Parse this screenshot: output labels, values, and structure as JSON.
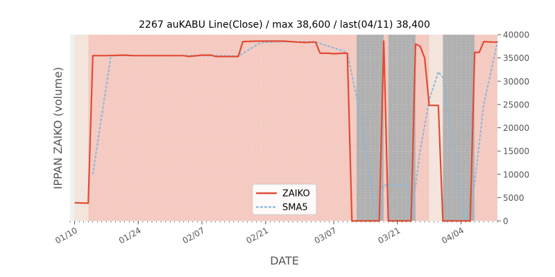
{
  "chart_data": {
    "type": "line",
    "title": "2267 auKABU Line(Close) / max 38,600 / last(04/11) 38,400",
    "xlabel": "DATE",
    "ylabel": "IPPAN ZAIKO (volume)",
    "ylim": [
      0,
      40000
    ],
    "y_ticks": [
      0,
      5000,
      10000,
      15000,
      20000,
      25000,
      30000,
      35000,
      40000
    ],
    "y_tick_labels": [
      "0",
      "5000",
      "10000",
      "15000",
      "20000",
      "25000",
      "30000",
      "35000",
      "40000"
    ],
    "y_axis_side": "right",
    "x_range": [
      "2024-01-09",
      "2024-04-12"
    ],
    "x_ticks": [
      "2024-01-10",
      "2024-01-24",
      "2024-02-07",
      "2024-02-21",
      "2024-03-07",
      "2024-03-21",
      "2024-04-04"
    ],
    "x_tick_labels": [
      "01/10",
      "01/24",
      "02/07",
      "02/21",
      "03/07",
      "03/21",
      "04/04"
    ],
    "grid": true,
    "legend_position": "bottom-center",
    "colors": {
      "zaiko": "#e24a33",
      "sma5": "#8eb9d8",
      "band_light": "#f3e4dc",
      "band_red": "#f4cac1",
      "band_gray": "#b1b1b1"
    },
    "bands": [
      {
        "start": "2024-01-10",
        "end": "2024-01-13",
        "kind": "light"
      },
      {
        "start": "2024-01-13",
        "end": "2024-03-12",
        "kind": "red"
      },
      {
        "start": "2024-03-12",
        "end": "2024-03-18",
        "kind": "gray"
      },
      {
        "start": "2024-03-18",
        "end": "2024-03-19",
        "kind": "red"
      },
      {
        "start": "2024-03-19",
        "end": "2024-03-25",
        "kind": "gray"
      },
      {
        "start": "2024-03-25",
        "end": "2024-03-28",
        "kind": "red"
      },
      {
        "start": "2024-03-28",
        "end": "2024-03-31",
        "kind": "light"
      },
      {
        "start": "2024-03-31",
        "end": "2024-04-07",
        "kind": "gray"
      },
      {
        "start": "2024-04-07",
        "end": "2024-04-12",
        "kind": "red"
      }
    ],
    "series": [
      {
        "name": "ZAIKO",
        "style": "solid",
        "points": [
          [
            "2024-01-10",
            3900
          ],
          [
            "2024-01-13",
            3800
          ],
          [
            "2024-01-14",
            35500
          ],
          [
            "2024-01-17",
            35500
          ],
          [
            "2024-01-21",
            35600
          ],
          [
            "2024-01-23",
            35500
          ],
          [
            "2024-01-28",
            35500
          ],
          [
            "2024-02-03",
            35500
          ],
          [
            "2024-02-04",
            35300
          ],
          [
            "2024-02-07",
            35600
          ],
          [
            "2024-02-09",
            35600
          ],
          [
            "2024-02-10",
            35300
          ],
          [
            "2024-02-15",
            35300
          ],
          [
            "2024-02-16",
            38500
          ],
          [
            "2024-02-19",
            38600
          ],
          [
            "2024-02-25",
            38600
          ],
          [
            "2024-02-28",
            38400
          ],
          [
            "2024-03-01",
            38300
          ],
          [
            "2024-03-02",
            38400
          ],
          [
            "2024-03-03",
            38400
          ],
          [
            "2024-03-04",
            36000
          ],
          [
            "2024-03-06",
            36000
          ],
          [
            "2024-03-07",
            35900
          ],
          [
            "2024-03-09",
            36000
          ],
          [
            "2024-03-10",
            36000
          ],
          [
            "2024-03-11",
            0
          ],
          [
            "2024-03-17",
            0
          ],
          [
            "2024-03-18",
            38600
          ],
          [
            "2024-03-19",
            0
          ],
          [
            "2024-03-24",
            0
          ],
          [
            "2024-03-25",
            38000
          ],
          [
            "2024-03-26",
            37500
          ],
          [
            "2024-03-27",
            35000
          ],
          [
            "2024-03-28",
            24800
          ],
          [
            "2024-03-30",
            24800
          ],
          [
            "2024-03-31",
            0
          ],
          [
            "2024-04-06",
            0
          ],
          [
            "2024-04-07",
            36200
          ],
          [
            "2024-04-08",
            36200
          ],
          [
            "2024-04-09",
            38500
          ],
          [
            "2024-04-11",
            38400
          ],
          [
            "2024-04-12",
            38400
          ]
        ]
      },
      {
        "name": "SMA5",
        "style": "dotted",
        "points": [
          [
            "2024-01-14",
            10100
          ],
          [
            "2024-01-18",
            35500
          ],
          [
            "2024-01-23",
            35500
          ],
          [
            "2024-02-10",
            35500
          ],
          [
            "2024-02-15",
            35400
          ],
          [
            "2024-02-20",
            38300
          ],
          [
            "2024-02-25",
            38500
          ],
          [
            "2024-03-03",
            38400
          ],
          [
            "2024-03-05",
            37800
          ],
          [
            "2024-03-09",
            36500
          ],
          [
            "2024-03-10",
            36000
          ],
          [
            "2024-03-13",
            22000
          ],
          [
            "2024-03-16",
            3000
          ],
          [
            "2024-03-17",
            0
          ],
          [
            "2024-03-18",
            7700
          ],
          [
            "2024-03-22",
            7700
          ],
          [
            "2024-03-23",
            7800
          ],
          [
            "2024-03-24",
            0
          ],
          [
            "2024-03-26",
            15000
          ],
          [
            "2024-03-28",
            26000
          ],
          [
            "2024-03-30",
            32000
          ],
          [
            "2024-03-31",
            30800
          ],
          [
            "2024-04-04",
            4500
          ],
          [
            "2024-04-05",
            0
          ],
          [
            "2024-04-07",
            8000
          ],
          [
            "2024-04-09",
            25000
          ],
          [
            "2024-04-12",
            38400
          ]
        ]
      }
    ]
  }
}
